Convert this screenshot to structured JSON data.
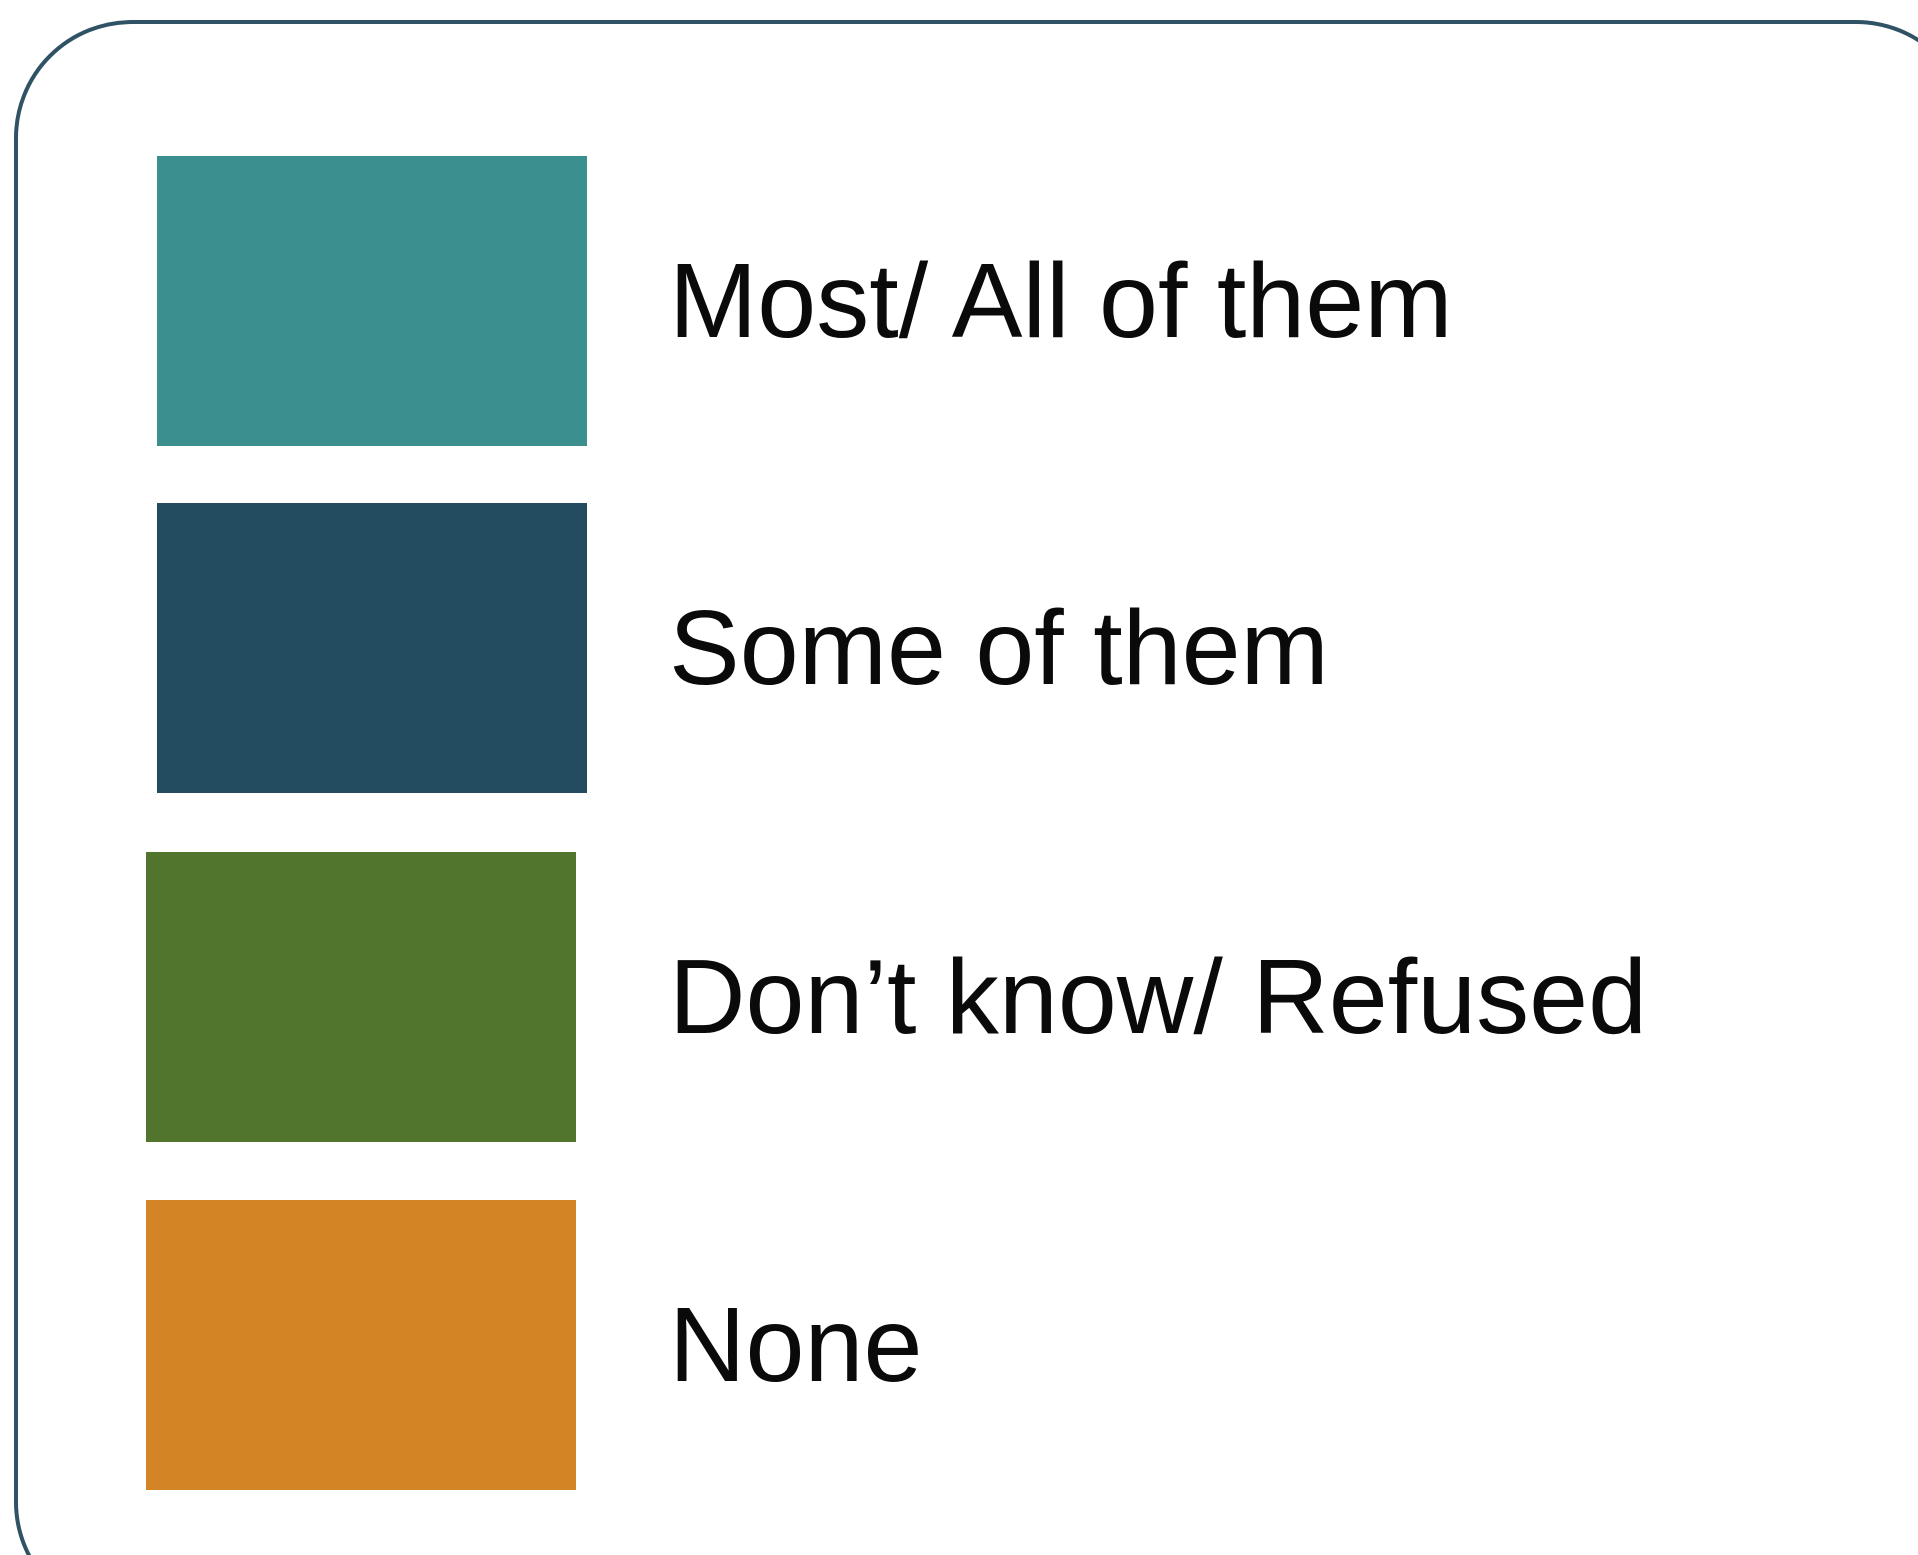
{
  "chart_data": {
    "type": "legend",
    "legend": [
      {
        "label": "Most/ All of them",
        "color": "#3b8f8f"
      },
      {
        "label": "Some of them",
        "color": "#244c60"
      },
      {
        "label": "Don’t know/ Refused",
        "color": "#52752d"
      },
      {
        "label": "None",
        "color": "#d38526"
      }
    ]
  }
}
